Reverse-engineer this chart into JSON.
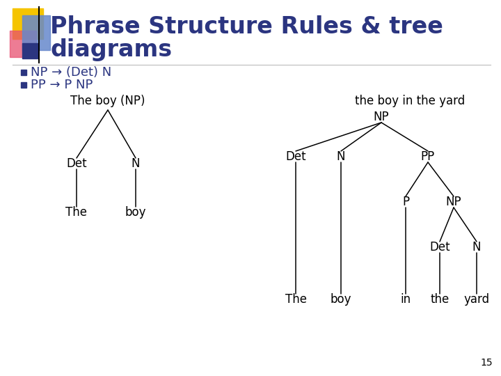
{
  "title_line1": "Phrase Structure Rules & tree",
  "title_line2": "diagrams",
  "title_color": "#2B3580",
  "title_fontsize": 24,
  "bullet_color": "#2B3580",
  "bullet_fontsize": 13,
  "bullet1": "NP → (Det) N",
  "bullet2": "PP → P NP",
  "tree1_label": "The boy (NP)",
  "tree2_label": "the boy in the yard",
  "slide_bg": "#FFFFFF",
  "tree_font_size": 12,
  "tree_color": "#000000",
  "page_number": "15",
  "accent_yellow": "#F5C400",
  "accent_red": "#E85070",
  "accent_blue": "#2B3580",
  "accent_blue_light": "#6688CC"
}
